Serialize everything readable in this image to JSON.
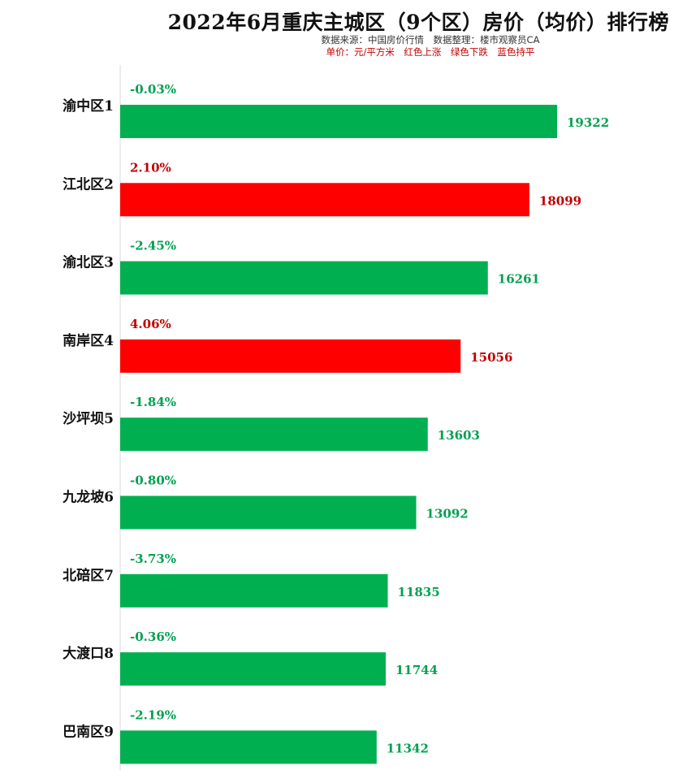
{
  "header": {
    "title": "2022年6月重庆主城区（9个区）房价（均价）排行榜",
    "source": "数据来源：中国房价行情　数据整理：楼市观察员CA",
    "legend_note": "单价：元/平方米　红色上涨　绿色下跌　蓝色持平"
  },
  "colors": {
    "up": "#ff0000",
    "down": "#00b050",
    "flat": "#0070c0",
    "up_text": "#c00000",
    "down_text": "#00a050"
  },
  "chart_data": {
    "type": "bar",
    "orientation": "horizontal",
    "title": "2022年6月重庆主城区（9个区）房价（均价）排行榜",
    "unit": "元/平方米",
    "categories": [
      "渝中区1",
      "江北区2",
      "渝北区3",
      "南岸区4",
      "沙坪坝5",
      "九龙坡6",
      "北碚区7",
      "大渡口8",
      "巴南区9"
    ],
    "values": [
      19322,
      18099,
      16261,
      15056,
      13603,
      13092,
      11835,
      11744,
      11342
    ],
    "changes": [
      "-0.03%",
      "2.10%",
      "-2.45%",
      "4.06%",
      "-1.84%",
      "-0.80%",
      "-3.73%",
      "-0.36%",
      "-2.19%"
    ],
    "trend": [
      "down",
      "up",
      "down",
      "up",
      "down",
      "down",
      "down",
      "down",
      "down"
    ],
    "xlim": [
      0,
      19322
    ],
    "grid": false,
    "legend": "none"
  }
}
